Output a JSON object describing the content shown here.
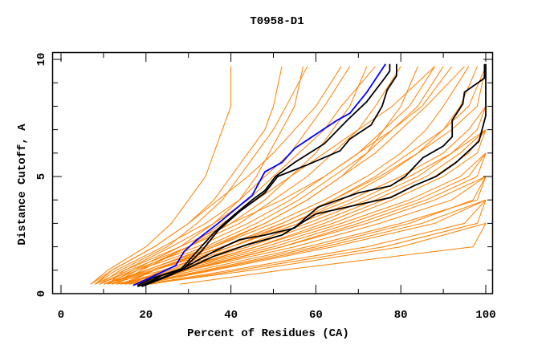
{
  "chart_data": {
    "type": "line",
    "title": "T0958-D1",
    "xlabel": "Percent of Residues (CA)",
    "ylabel": "Distance Cutoff, A",
    "xlim": [
      -2,
      101.7
    ],
    "ylim": [
      0,
      10.3
    ],
    "x_ticks": [
      0,
      20,
      40,
      60,
      80,
      100
    ],
    "x_tick_labels": [
      "0",
      "20",
      "40",
      "60",
      "80",
      "100"
    ],
    "y_ticks": [
      0,
      5,
      10
    ],
    "y_tick_labels": [
      "0",
      "5",
      "10"
    ],
    "grid": false,
    "colors": {
      "others": "#ff8000",
      "highlight_blue": "#0000ff",
      "highlight_black": "#000000"
    },
    "cutoffs": [
      0.4,
      1,
      2,
      3,
      4,
      5,
      6,
      7,
      8,
      9.7
    ],
    "orange_series_x_at_cutoffs": [
      [
        8,
        15,
        28,
        40,
        52,
        62,
        70,
        78,
        85,
        92
      ],
      [
        10,
        20,
        35,
        48,
        58,
        66,
        74,
        80,
        86,
        95
      ],
      [
        7,
        12,
        22,
        30,
        37,
        44,
        50,
        55,
        60,
        66
      ],
      [
        9,
        14,
        25,
        32,
        38,
        42,
        46,
        50,
        53,
        58
      ],
      [
        12,
        22,
        38,
        52,
        64,
        75,
        84,
        92,
        98,
        100
      ],
      [
        14,
        28,
        50,
        68,
        84,
        96,
        100
      ],
      [
        15,
        30,
        55,
        75,
        92,
        100
      ],
      [
        18,
        35,
        62,
        85,
        100
      ],
      [
        20,
        40,
        72,
        95,
        100
      ],
      [
        16,
        32,
        58,
        80,
        98,
        100
      ],
      [
        13,
        26,
        46,
        64,
        78,
        90,
        98,
        100
      ],
      [
        11,
        24,
        42,
        58,
        72,
        84,
        92,
        98,
        100
      ],
      [
        20,
        45,
        80,
        100
      ],
      [
        28,
        52,
        97,
        100
      ],
      [
        17,
        34,
        60,
        82,
        97,
        100
      ],
      [
        14,
        27,
        48,
        66,
        82,
        94,
        100
      ],
      [
        10,
        18,
        34,
        46,
        56,
        64,
        72,
        78,
        84,
        90
      ],
      [
        9,
        16,
        30,
        42,
        50,
        58,
        64,
        70,
        74,
        80
      ],
      [
        8,
        13,
        24,
        34,
        42,
        48,
        54,
        58,
        62,
        68
      ],
      [
        11,
        17,
        28,
        36,
        42,
        46,
        49,
        52,
        55,
        57
      ],
      [
        7,
        11,
        20,
        26,
        30,
        34,
        36,
        38,
        40,
        40
      ],
      [
        13,
        19,
        30,
        38,
        46,
        54,
        62,
        70,
        78,
        88
      ],
      [
        12,
        20,
        36,
        50,
        62,
        72,
        80,
        86,
        90,
        96
      ],
      [
        15,
        25,
        44,
        60,
        74,
        86,
        94,
        100
      ],
      [
        18,
        30,
        52,
        70,
        86,
        98,
        100
      ],
      [
        10,
        22,
        40,
        56,
        70,
        82,
        92,
        100
      ],
      [
        9,
        17,
        32,
        44,
        54,
        62,
        70,
        76,
        82,
        88
      ],
      [
        14,
        22,
        36,
        48,
        58,
        66,
        72,
        76,
        80,
        84
      ],
      [
        16,
        24,
        40,
        54,
        66,
        76,
        84,
        90,
        94,
        98
      ],
      [
        12,
        18,
        30,
        40,
        48,
        54,
        60,
        64,
        68,
        72
      ],
      [
        19,
        36,
        64,
        88,
        100
      ],
      [
        21,
        42,
        76,
        98,
        100
      ],
      [
        13,
        29,
        52,
        72,
        88,
        100
      ],
      [
        11,
        15,
        26,
        36,
        44,
        50,
        56,
        62,
        66,
        74
      ],
      [
        10,
        21,
        38,
        54,
        68,
        80,
        90,
        96,
        100
      ],
      [
        17,
        27,
        46,
        62,
        76,
        88,
        96,
        100
      ],
      [
        8,
        12,
        22,
        30,
        36,
        40,
        44,
        48,
        50,
        52
      ],
      [
        15,
        22,
        38,
        52,
        64,
        74,
        82,
        90,
        96,
        100
      ]
    ],
    "highlight_series": [
      {
        "color": "#0000ff",
        "points": [
          [
            17,
            0.35
          ],
          [
            20,
            0.6
          ],
          [
            27,
            1.2
          ],
          [
            29,
            1.8
          ],
          [
            32,
            2.3
          ],
          [
            37,
            3.0
          ],
          [
            41,
            3.6
          ],
          [
            45,
            4.2
          ],
          [
            48,
            5.2
          ],
          [
            52,
            5.6
          ],
          [
            55,
            6.2
          ],
          [
            60,
            6.8
          ],
          [
            65,
            7.4
          ],
          [
            68,
            7.7
          ],
          [
            72,
            8.6
          ],
          [
            76.4,
            9.8
          ]
        ]
      },
      {
        "color": "#000000",
        "points": [
          [
            18,
            0.35
          ],
          [
            22,
            0.7
          ],
          [
            28,
            1.0
          ],
          [
            31,
            1.6
          ],
          [
            36,
            2.6
          ],
          [
            41,
            3.4
          ],
          [
            45,
            4.0
          ],
          [
            48,
            4.4
          ],
          [
            50.5,
            5.0
          ],
          [
            55,
            5.6
          ],
          [
            62,
            6.4
          ],
          [
            67.4,
            7.4
          ],
          [
            72,
            8.2
          ],
          [
            76.2,
            9.2
          ],
          [
            77.4,
            9.5
          ],
          [
            77.4,
            9.8
          ]
        ]
      },
      {
        "color": "#000000",
        "points": [
          [
            19,
            0.35
          ],
          [
            24,
            0.8
          ],
          [
            29,
            1.1
          ],
          [
            33,
            1.8
          ],
          [
            37,
            2.7
          ],
          [
            42,
            3.5
          ],
          [
            48,
            4.3
          ],
          [
            51,
            5.0
          ],
          [
            58,
            5.5
          ],
          [
            65.7,
            6.1
          ],
          [
            68,
            6.6
          ],
          [
            73,
            7.2
          ],
          [
            75.6,
            8.0
          ],
          [
            76.8,
            8.7
          ],
          [
            79,
            9.3
          ],
          [
            79,
            9.8
          ]
        ]
      },
      {
        "color": "#000000",
        "points": [
          [
            19,
            0.3
          ],
          [
            26,
            0.8
          ],
          [
            31,
            1.3
          ],
          [
            36,
            1.8
          ],
          [
            42,
            2.3
          ],
          [
            48,
            2.5
          ],
          [
            55,
            2.8
          ],
          [
            58,
            3.3
          ],
          [
            60.6,
            3.7
          ],
          [
            70,
            4.3
          ],
          [
            77.6,
            4.6
          ],
          [
            81,
            5.0
          ],
          [
            85.2,
            5.8
          ],
          [
            90,
            6.3
          ],
          [
            92.1,
            6.7
          ],
          [
            92.1,
            7.4
          ],
          [
            94.6,
            8.1
          ],
          [
            95,
            8.6
          ],
          [
            99.7,
            9.2
          ],
          [
            99.7,
            9.8
          ]
        ]
      },
      {
        "color": "#000000",
        "points": [
          [
            18,
            0.3
          ],
          [
            24,
            0.7
          ],
          [
            30,
            1.1
          ],
          [
            36,
            1.6
          ],
          [
            44,
            2.1
          ],
          [
            52,
            2.5
          ],
          [
            55.6,
            2.9
          ],
          [
            60,
            3.4
          ],
          [
            70,
            3.8
          ],
          [
            77.6,
            4.1
          ],
          [
            83,
            4.6
          ],
          [
            88.3,
            5.0
          ],
          [
            93,
            5.6
          ],
          [
            98.4,
            6.5
          ],
          [
            100,
            7.6
          ],
          [
            100,
            9.8
          ]
        ]
      }
    ]
  }
}
